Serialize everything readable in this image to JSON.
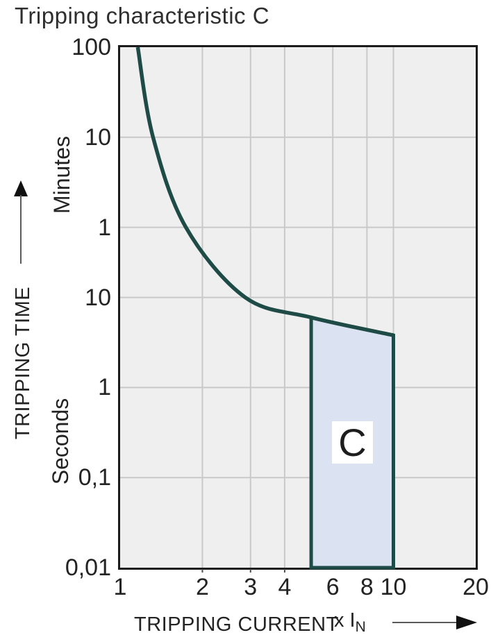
{
  "title": "Tripping characteristic C",
  "y_axis": {
    "label": "TRIPPING TIME",
    "unit_upper": "Minutes",
    "unit_lower": "Seconds"
  },
  "x_axis": {
    "label": "TRIPPING CURRENT",
    "multiplier_prefix": "x I",
    "multiplier_subscript": "N"
  },
  "region": {
    "label": "C"
  },
  "colors": {
    "curve": "#1f4b47",
    "region_fill": "#dbe3f3",
    "plot_background": "#efefef",
    "gridline": "#c9c9c9",
    "plot_border": "#1b1b1b",
    "text": "#242424"
  },
  "chart_data": {
    "type": "line",
    "title": "Tripping characteristic C",
    "xlabel": "TRIPPING CURRENT (x IN)",
    "ylabel": "TRIPPING TIME",
    "x_scale": "log",
    "y_scale": "log",
    "xlim": [
      1,
      20
    ],
    "ylim_seconds": [
      0.01,
      6000
    ],
    "grid": true,
    "legend": false,
    "x_ticks": [
      {
        "label": "1",
        "value": 1
      },
      {
        "label": "2",
        "value": 2
      },
      {
        "label": "3",
        "value": 3
      },
      {
        "label": "4",
        "value": 4
      },
      {
        "label": "6",
        "value": 6
      },
      {
        "label": "8",
        "value": 8
      },
      {
        "label": "10",
        "value": 10
      },
      {
        "label": "20",
        "value": 20
      }
    ],
    "y_ticks": [
      {
        "label": "100",
        "seconds": 6000,
        "unit": "minutes"
      },
      {
        "label": "10",
        "seconds": 600,
        "unit": "minutes"
      },
      {
        "label": "1",
        "seconds": 60,
        "unit": "minutes"
      },
      {
        "label": "10",
        "seconds": 10,
        "unit": "seconds"
      },
      {
        "label": "1",
        "seconds": 1,
        "unit": "seconds"
      },
      {
        "label": "0,1",
        "seconds": 0.1,
        "unit": "seconds"
      },
      {
        "label": "0,01",
        "seconds": 0.01,
        "unit": "seconds"
      }
    ],
    "curve_points": [
      {
        "x": 1.16,
        "seconds": 6000
      },
      {
        "x": 1.32,
        "seconds": 600
      },
      {
        "x": 1.74,
        "seconds": 60
      },
      {
        "x": 2.87,
        "seconds": 10
      },
      {
        "x": 5.0,
        "seconds": 6.0
      },
      {
        "x": 10.0,
        "seconds": 3.8
      }
    ],
    "trip_region": {
      "label": "C",
      "x_range": [
        5,
        10
      ],
      "bottom_seconds": 0.01,
      "top_left_seconds": 6.0,
      "top_right_seconds": 3.8
    }
  }
}
